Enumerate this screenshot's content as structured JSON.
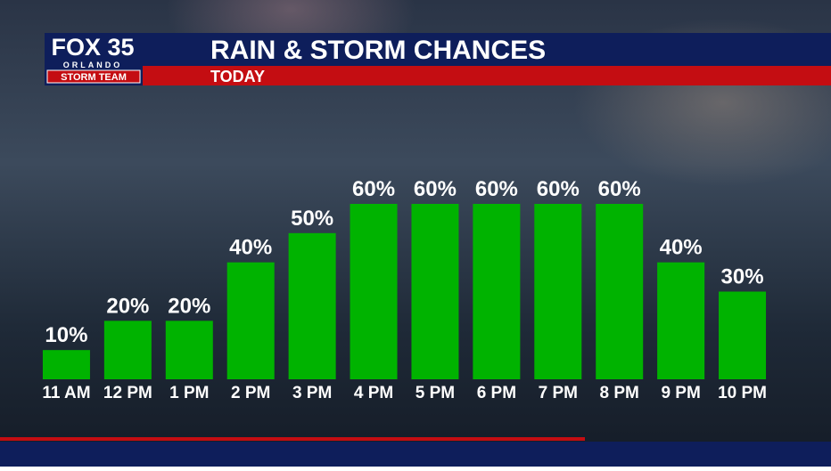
{
  "branding": {
    "station": "FOX 35",
    "city": "ORLANDO",
    "team": "STORM TEAM"
  },
  "chart_data": {
    "type": "bar",
    "title": "RAIN & STORM CHANCES",
    "subtitle": "TODAY",
    "categories": [
      "11 AM",
      "12 PM",
      "1 PM",
      "2 PM",
      "3 PM",
      "4 PM",
      "5 PM",
      "6 PM",
      "7 PM",
      "8 PM",
      "9 PM",
      "10 PM"
    ],
    "values": [
      10,
      20,
      20,
      40,
      50,
      60,
      60,
      60,
      60,
      60,
      40,
      30
    ],
    "value_labels": [
      "10%",
      "20%",
      "20%",
      "40%",
      "50%",
      "60%",
      "60%",
      "60%",
      "60%",
      "60%",
      "40%",
      "30%"
    ],
    "color": "#00b300",
    "ylim": [
      0,
      60
    ]
  }
}
